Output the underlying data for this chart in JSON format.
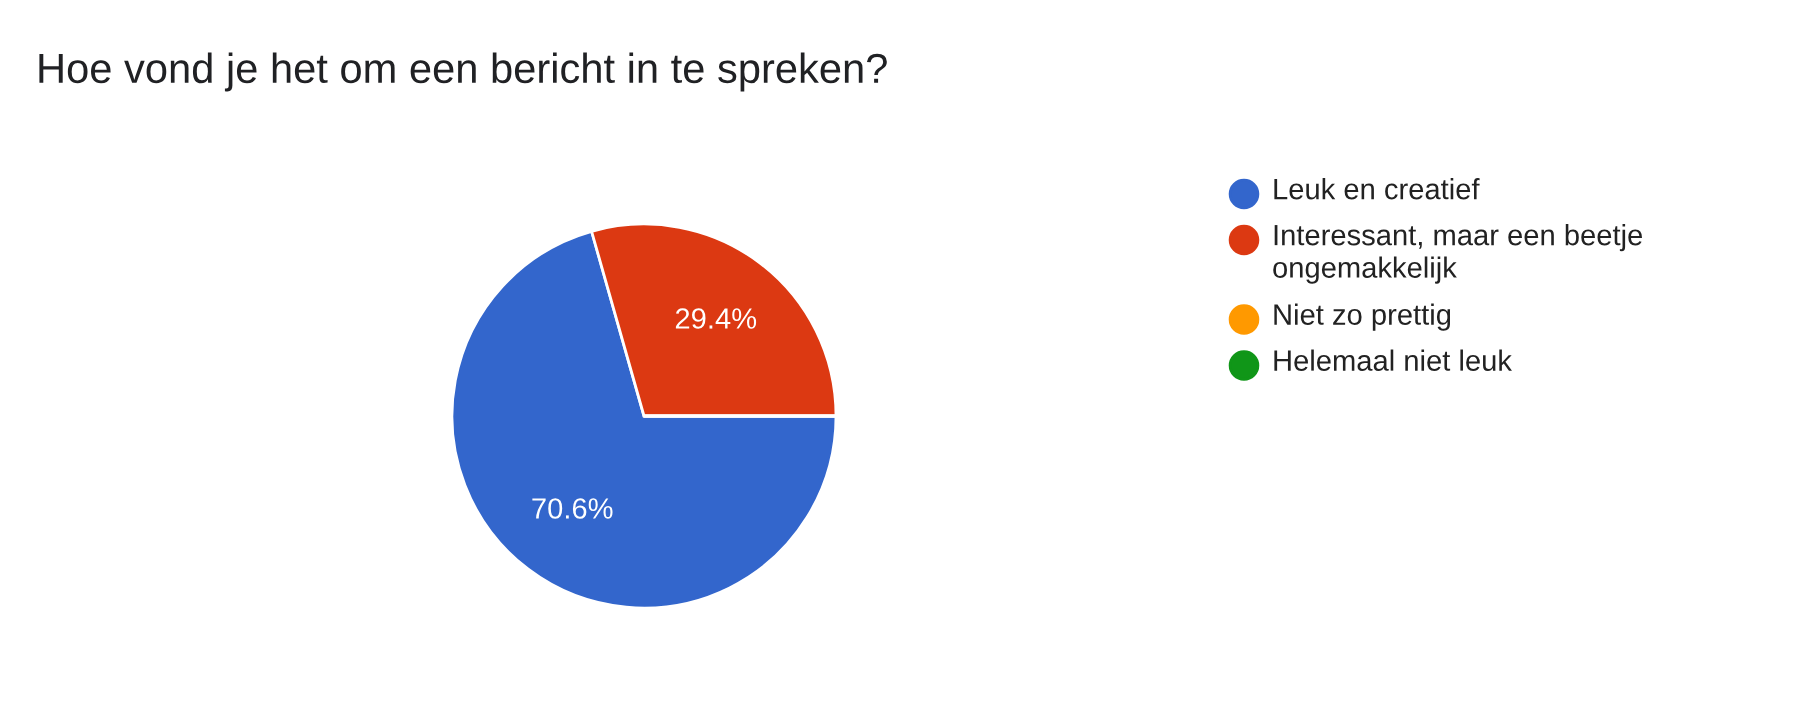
{
  "chart_data": {
    "type": "pie",
    "title": "Hoe vond je het om een bericht in te spreken?",
    "categories": [
      "Leuk en creatief",
      "Interessant, maar een beetje ongemakkelijk",
      "Niet zo prettig",
      "Helemaal niet leuk"
    ],
    "values": [
      70.6,
      29.4,
      0,
      0
    ],
    "colors": [
      "#3366cc",
      "#dc3912",
      "#ff9900",
      "#109618"
    ],
    "value_labels": [
      "70.6%",
      "29.4%",
      null,
      null
    ],
    "legend": "right"
  }
}
